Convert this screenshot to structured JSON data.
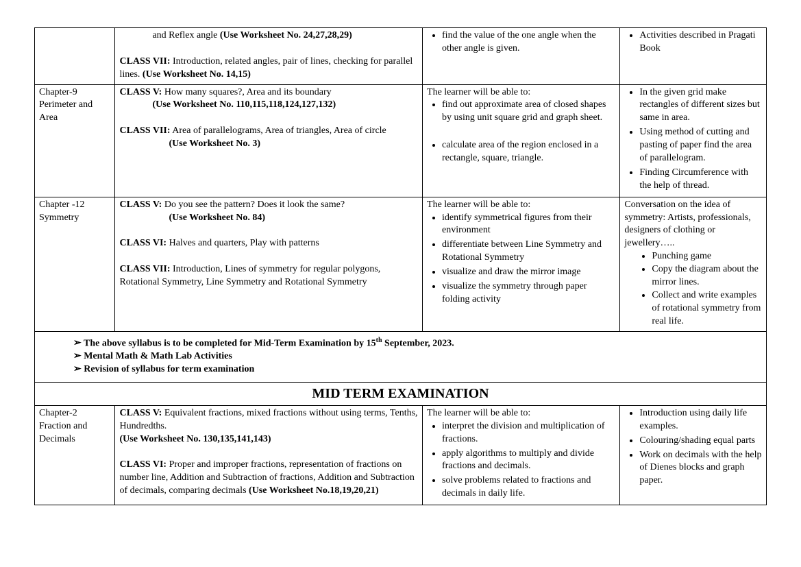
{
  "row0": {
    "content_line1_pre": "and Reflex angle ",
    "content_line1_bold": "(Use Worksheet No. 24,27,28,29)",
    "c7_label": "CLASS VII:",
    "c7_text": "  Introduction, related angles, pair of lines, checking for parallel lines.   ",
    "c7_bold": "(Use Worksheet No. 14,15)",
    "outcome_b1": "find the value of the one angle when the other angle is given.",
    "act_b1": "Activities described in Pragati Book"
  },
  "row1": {
    "chapter_a": "Chapter-9",
    "chapter_b": "Perimeter and Area",
    "c5_label": "CLASS V:",
    "c5_text": " How many squares?, Area and its boundary",
    "c5_ws": "(Use Worksheet No. 110,115,118,124,127,132)",
    "c7_label": "CLASS VII:",
    "c7_text": " Area of parallelograms, Area of triangles, Area of circle",
    "c7_ws": "(Use Worksheet No. 3)",
    "out_intro": "The learner will be able to:",
    "out_b1": "find out approximate area of closed shapes by using unit square grid and graph sheet.",
    "out_b2": "calculate area of the region enclosed in a rectangle, square, triangle.",
    "act_b1": "In the given grid make rectangles of different sizes but same in area.",
    "act_b2": "Using method of cutting and pasting of paper find the area of parallelogram.",
    "act_b3": "Finding Circumference with the help of thread."
  },
  "row2": {
    "chapter_a": "Chapter -12",
    "chapter_b": "Symmetry",
    "c5_label": "CLASS V:",
    "c5_text": " Do you see the pattern? Does it look the same?",
    "c5_ws": "(Use Worksheet No. 84)",
    "c6_label": "CLASS VI:",
    "c6_text": "  Halves and quarters, Play with patterns",
    "c7_label": "CLASS VII:",
    "c7_text": "  Introduction, Lines of symmetry for regular polygons, Rotational Symmetry, Line Symmetry and Rotational Symmetry",
    "out_intro": "The learner will be able to:",
    "out_b1": "identify symmetrical figures from their environment",
    "out_b2": "differentiate between Line Symmetry and Rotational Symmetry",
    "out_b3": "visualize and draw the mirror image",
    "out_b4": "visualize the symmetry through paper folding activity",
    "act_intro": "Conversation on the idea of symmetry: Artists, professionals, designers of clothing or jewellery…..",
    "act_s1": "Punching game",
    "act_s2": "Copy the diagram about the mirror lines.",
    "act_s3": "Collect and write examples of rotational symmetry from real life."
  },
  "notes": {
    "n1_pre": "The above syllabus is to be completed for Mid-Term Examination by 15",
    "n1_sup": "th",
    "n1_post": " September, 2023.",
    "n2": "Mental Math & Math Lab Activities",
    "n3": "Revision of syllabus for term examination"
  },
  "header": {
    "mid": "MID TERM EXAMINATION"
  },
  "row3": {
    "chapter_a": "Chapter-2",
    "chapter_b": "Fraction and Decimals",
    "c5_label": "CLASS V:",
    "c5_text": "  Equivalent fractions, mixed fractions without using terms, Tenths, Hundredths.",
    "c5_ws": "(Use Worksheet No. 130,135,141,143)",
    "c6_label": "CLASS VI:",
    "c6_text": " Proper and improper fractions, representation of fractions on number line, Addition and Subtraction of fractions, Addition and Subtraction of decimals, comparing decimals  ",
    "c6_ws": "(Use Worksheet No.18,19,20,21)",
    "out_intro": "The learner will be able to:",
    "out_b1": "interpret the division and multiplication of fractions.",
    "out_b2": "apply algorithms to multiply and divide fractions and decimals.",
    "out_b3": "solve problems related to fractions and decimals in daily life.",
    "act_b1": "Introduction using daily life examples.",
    "act_b2": "Colouring/shading equal parts",
    "act_b3": "Work on decimals with the help of Dienes blocks and graph paper."
  }
}
